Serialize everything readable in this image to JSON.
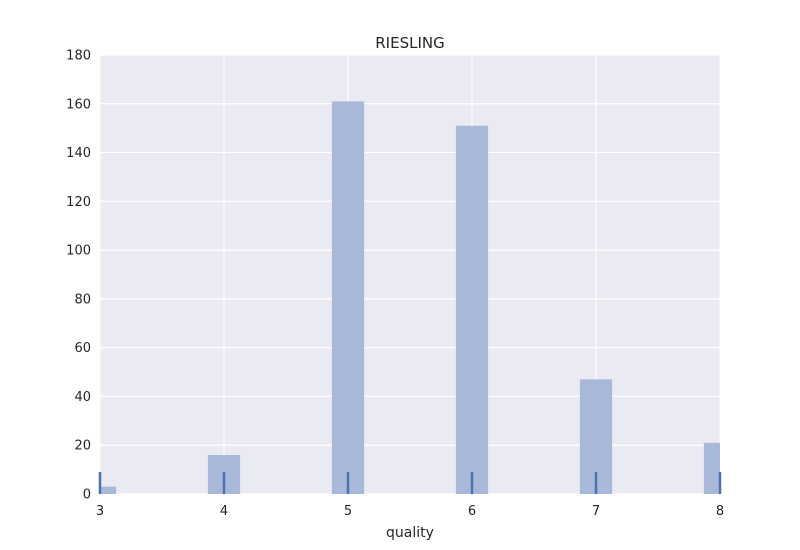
{
  "chart_data": {
    "type": "bar",
    "title": "RIESLING",
    "xlabel": "quality",
    "ylabel": "",
    "xlim": [
      3,
      8
    ],
    "ylim": [
      0,
      180
    ],
    "x_ticks": [
      "3",
      "4",
      "5",
      "6",
      "7",
      "8"
    ],
    "y_ticks": [
      "0",
      "20",
      "40",
      "60",
      "80",
      "100",
      "120",
      "140",
      "160",
      "180"
    ],
    "grid": true,
    "bins": [
      {
        "x": 3,
        "value": 3
      },
      {
        "x": 4,
        "value": 16
      },
      {
        "x": 5,
        "value": 161
      },
      {
        "x": 6,
        "value": 151
      },
      {
        "x": 7,
        "value": 47
      },
      {
        "x": 8,
        "value": 21
      }
    ],
    "rug": [
      3,
      4,
      5,
      6,
      7,
      8
    ],
    "colors": {
      "background": "#eaeaf2",
      "grid": "#ffffff",
      "bar": "#a9b8d8",
      "rug": "#4c72b0"
    }
  }
}
